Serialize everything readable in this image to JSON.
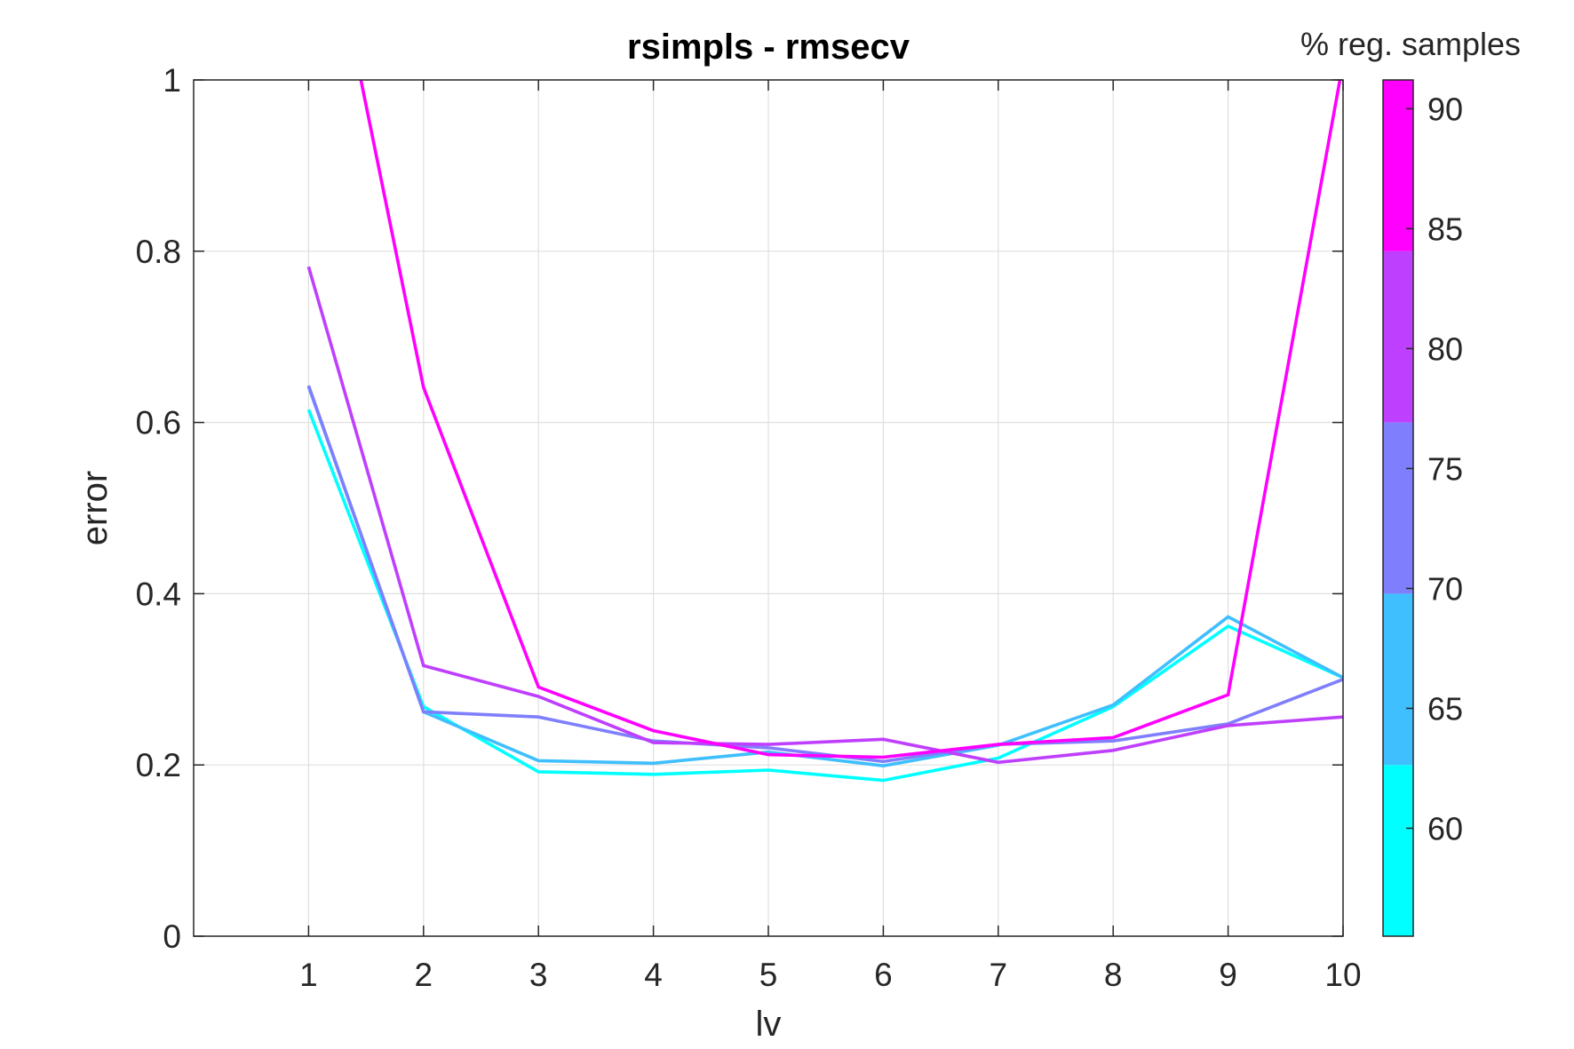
{
  "chart_data": {
    "type": "line",
    "title": "rsimpls - rmsecv",
    "xlabel": "lv",
    "ylabel": "error",
    "xlim": [
      0,
      10
    ],
    "ylim": [
      0,
      1
    ],
    "xticks": [
      1,
      2,
      3,
      4,
      5,
      6,
      7,
      8,
      9,
      10
    ],
    "yticks": [
      0,
      0.2,
      0.4,
      0.6,
      0.8,
      1
    ],
    "ytick_labels": [
      "0",
      "0.2",
      "0.4",
      "0.6",
      "0.8",
      "1"
    ],
    "grid": true,
    "x": [
      1,
      2,
      3,
      4,
      5,
      6,
      7,
      8,
      9,
      10
    ],
    "series": [
      {
        "color": "#00ffff",
        "values": [
          0.615,
          0.268,
          0.192,
          0.189,
          0.194,
          0.182,
          0.208,
          0.268,
          0.362,
          0.302
        ]
      },
      {
        "color": "#3fbffe",
        "values": [
          0.642,
          0.262,
          0.205,
          0.202,
          0.215,
          0.199,
          0.223,
          0.27,
          0.373,
          0.302
        ]
      },
      {
        "color": "#7f7ffe",
        "values": [
          0.643,
          0.262,
          0.256,
          0.228,
          0.22,
          0.204,
          0.224,
          0.228,
          0.248,
          0.3
        ]
      },
      {
        "color": "#bf3ffe",
        "values": [
          0.782,
          0.316,
          0.28,
          0.226,
          0.224,
          0.23,
          0.203,
          0.217,
          0.246,
          0.256
        ]
      },
      {
        "color": "#ff00ff",
        "values": [
          1.3,
          0.641,
          0.291,
          0.24,
          0.212,
          0.209,
          0.224,
          0.232,
          0.282,
          1.02
        ]
      }
    ],
    "colorbar": {
      "title": "% reg. samples",
      "range": [
        55.5,
        91.2
      ],
      "tick_values": [
        60,
        65,
        70,
        75,
        80,
        85,
        90
      ],
      "tick_labels": [
        "60",
        "65",
        "70",
        "75",
        "80",
        "85",
        "90"
      ],
      "bands": [
        {
          "from": 55.5,
          "to": 62.64,
          "color": "#00ffff"
        },
        {
          "from": 62.64,
          "to": 69.78,
          "color": "#3fbffe"
        },
        {
          "from": 69.78,
          "to": 76.92,
          "color": "#7f7ffe"
        },
        {
          "from": 76.92,
          "to": 84.06,
          "color": "#bf3ffe"
        },
        {
          "from": 84.06,
          "to": 91.2,
          "color": "#ff00ff"
        }
      ]
    }
  }
}
